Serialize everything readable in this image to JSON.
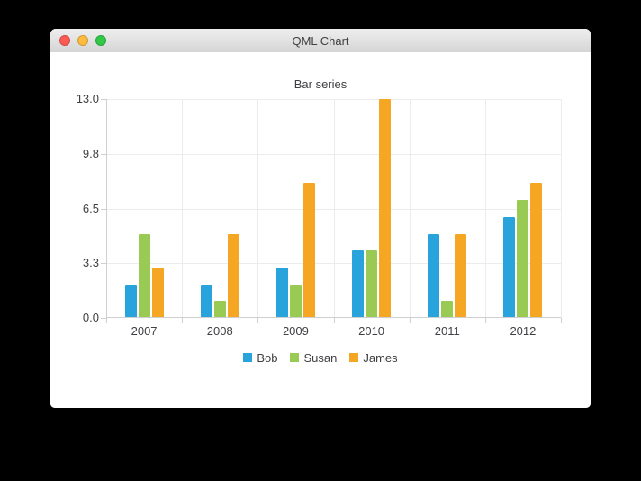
{
  "window": {
    "title": "QML Chart",
    "traffic_lights": {
      "close_color": "#fc5b54",
      "minimize_color": "#fdbc40",
      "zoom_color": "#33c748"
    }
  },
  "chart_data": {
    "type": "bar",
    "title": "Bar series",
    "categories": [
      "2007",
      "2008",
      "2009",
      "2010",
      "2011",
      "2012"
    ],
    "series": [
      {
        "name": "Bob",
        "color": "#29a3dc",
        "values": [
          2,
          2,
          3,
          4,
          5,
          6
        ]
      },
      {
        "name": "Susan",
        "color": "#99ca53",
        "values": [
          5,
          1,
          2,
          4,
          1,
          7
        ]
      },
      {
        "name": "James",
        "color": "#f5a623",
        "values": [
          3,
          5,
          8,
          13,
          5,
          8
        ]
      }
    ],
    "y_axis": {
      "min": 0,
      "max": 13,
      "tick_values": [
        0,
        3.25,
        6.5,
        9.75,
        13
      ],
      "tick_labels": [
        "0.0",
        "3.3",
        "6.5",
        "9.8",
        "13.0"
      ]
    },
    "grid": true,
    "legend_position": "bottom"
  }
}
